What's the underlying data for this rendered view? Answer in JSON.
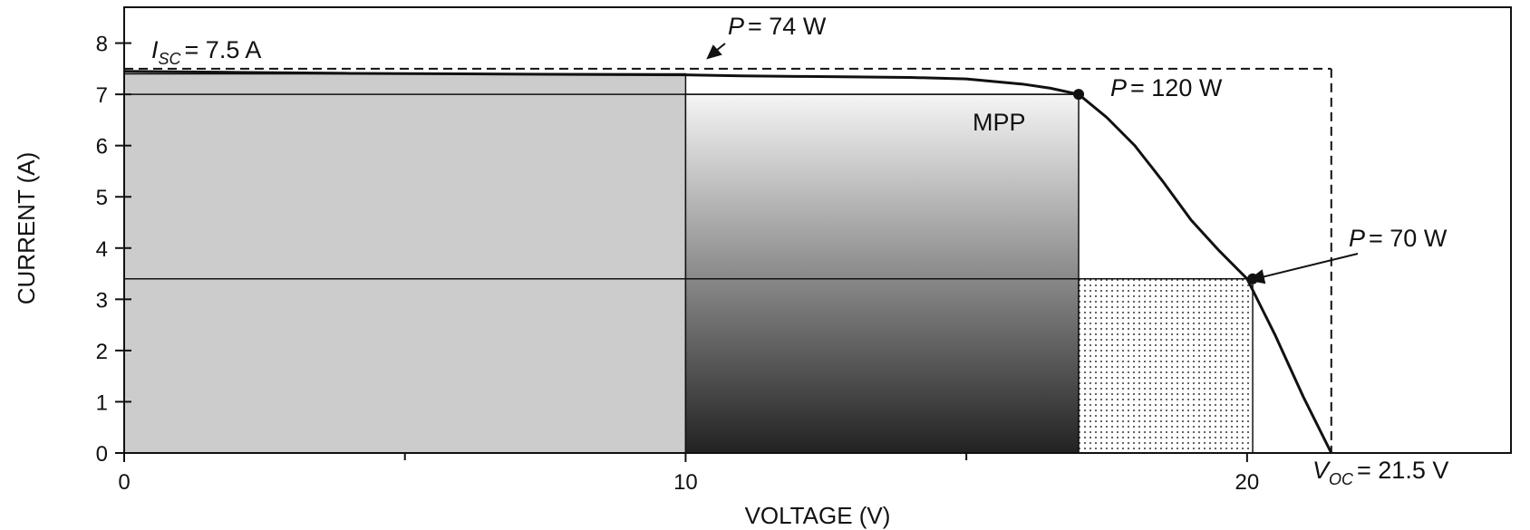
{
  "chart_data": {
    "type": "line",
    "title": "",
    "xlabel": "VOLTAGE (V)",
    "ylabel": "CURRENT (A)",
    "xlim": [
      0,
      24.7
    ],
    "ylim": [
      0,
      8.7
    ],
    "x_ticks": [
      "0",
      "10",
      "20"
    ],
    "x_minor_ticks": [
      5,
      15
    ],
    "y_ticks": [
      "0",
      "1",
      "2",
      "3",
      "4",
      "5",
      "6",
      "7",
      "8"
    ],
    "grid": false,
    "legend": "none",
    "isc": 7.5,
    "voc": 21.5,
    "iv_curve": {
      "x": [
        0,
        2,
        4,
        6,
        8,
        10,
        11,
        12,
        13,
        14,
        15,
        16,
        16.5,
        17,
        17.5,
        18,
        18.5,
        19,
        19.5,
        20,
        20.5,
        21,
        21.5
      ],
      "y": [
        7.45,
        7.43,
        7.41,
        7.4,
        7.39,
        7.38,
        7.36,
        7.35,
        7.34,
        7.33,
        7.3,
        7.2,
        7.12,
        7.0,
        6.55,
        6.0,
        5.3,
        4.55,
        3.95,
        3.4,
        2.3,
        1.1,
        0
      ]
    },
    "operating_points": [
      {
        "label_prefix": "P",
        "label_value": "= 74 W",
        "x": 10,
        "y": 7.4
      },
      {
        "label_prefix": "P",
        "label_value": "= 120 W",
        "x": 17,
        "y": 7.0
      },
      {
        "label_prefix": "P",
        "label_value": "= 70 W",
        "x": 20.1,
        "y": 3.4
      }
    ],
    "rectangles": [
      {
        "name": "P = 74 W",
        "x0": 0,
        "x1": 10,
        "y0": 0,
        "y1": 7.4,
        "fill": "#cccccc"
      },
      {
        "name": "P = 120 W",
        "x0": 10,
        "x1": 17,
        "y0": 0,
        "y1": 7.0,
        "fill": "gradient"
      },
      {
        "name": "P = 70 W",
        "x0": 17,
        "x1": 20.1,
        "y0": 0,
        "y1": 3.4,
        "fill": "dots"
      }
    ],
    "annotations": {
      "isc_main": "I",
      "isc_sub": "SC",
      "isc_value": "= 7.5 A",
      "voc_main": "V",
      "voc_sub": "OC",
      "voc_value": "= 21.5 V",
      "mpp": "MPP"
    },
    "colors": {
      "curve": "#111111",
      "light_fill": "#cccccc",
      "gradient_top": "#f5f5f5",
      "gradient_bottom": "#222222",
      "dots": "#333333"
    }
  }
}
